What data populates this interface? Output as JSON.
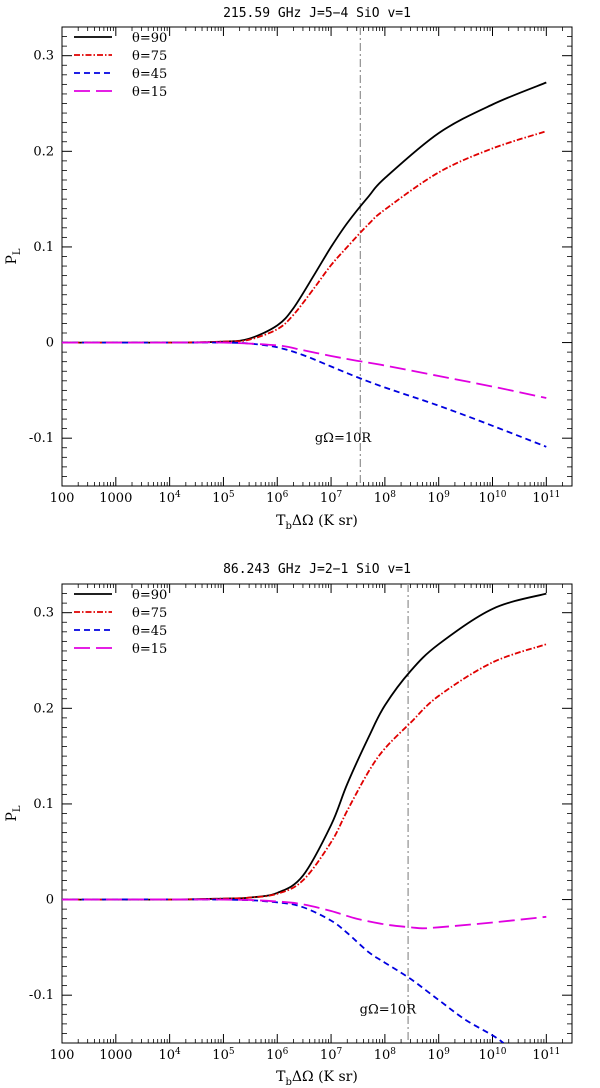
{
  "chart_data": [
    {
      "type": "line",
      "title": "215.59 GHz J=5−4 SiO v=1",
      "xlabel": "T_bΔΩ (K sr)",
      "ylabel": "P_L",
      "xscale": "log",
      "xlim": [
        100,
        300000000000.0
      ],
      "ylim": [
        -0.15,
        0.33
      ],
      "x_ticks": [
        {
          "v": 100,
          "base": "100",
          "exp": ""
        },
        {
          "v": 1000,
          "base": "1000",
          "exp": ""
        },
        {
          "v": 10000.0,
          "base": "10",
          "exp": "4"
        },
        {
          "v": 100000.0,
          "base": "10",
          "exp": "5"
        },
        {
          "v": 1000000.0,
          "base": "10",
          "exp": "6"
        },
        {
          "v": 10000000.0,
          "base": "10",
          "exp": "7"
        },
        {
          "v": 100000000.0,
          "base": "10",
          "exp": "8"
        },
        {
          "v": 1000000000.0,
          "base": "10",
          "exp": "9"
        },
        {
          "v": 10000000000.0,
          "base": "10",
          "exp": "10"
        },
        {
          "v": 100000000000.0,
          "base": "10",
          "exp": "11"
        }
      ],
      "y_ticks": [
        {
          "v": -0.1,
          "label": "-0.1"
        },
        {
          "v": 0,
          "label": "0"
        },
        {
          "v": 0.1,
          "label": "0.1"
        },
        {
          "v": 0.2,
          "label": "0.2"
        },
        {
          "v": 0.3,
          "label": "0.3"
        }
      ],
      "vline": 35000000.0,
      "annotation": {
        "text": "gΩ=10R",
        "x": 5000000.0,
        "y": -0.1
      },
      "series": [
        {
          "name": "θ=90",
          "color": "#000000",
          "dash": "",
          "x": [
            100,
            10000.0,
            100000.0,
            300000.0,
            1000000.0,
            2000000.0,
            5000000.0,
            10000000.0,
            20000000.0,
            50000000.0,
            100000000.0,
            1000000000.0,
            10000000000.0,
            100000000000.0
          ],
          "values": [
            0,
            0,
            0.001,
            0.004,
            0.018,
            0.036,
            0.072,
            0.1,
            0.125,
            0.153,
            0.172,
            0.219,
            0.249,
            0.272
          ]
        },
        {
          "name": "θ=75",
          "color": "#e00000",
          "dash": "6,2,1.5,2",
          "x": [
            100,
            10000.0,
            100000.0,
            300000.0,
            1000000.0,
            2000000.0,
            5000000.0,
            10000000.0,
            20000000.0,
            50000000.0,
            100000000.0,
            1000000000.0,
            10000000000.0,
            100000000000.0
          ],
          "values": [
            0,
            0,
            0.001,
            0.003,
            0.014,
            0.029,
            0.058,
            0.081,
            0.1,
            0.124,
            0.139,
            0.178,
            0.203,
            0.221
          ]
        },
        {
          "name": "θ=45",
          "color": "#0000e0",
          "dash": "6,4",
          "x": [
            100,
            10000.0,
            100000.0,
            300000.0,
            1000000.0,
            3000000.0,
            10000000.0,
            30000000.0,
            100000000.0,
            1000000000.0,
            10000000000.0,
            100000000000.0
          ],
          "values": [
            0,
            0,
            0,
            -0.001,
            -0.005,
            -0.013,
            -0.025,
            -0.036,
            -0.047,
            -0.066,
            -0.087,
            -0.109
          ]
        },
        {
          "name": "θ=15",
          "color": "#e000e0",
          "dash": "16,6",
          "x": [
            100,
            10000.0,
            100000.0,
            1000000.0,
            3000000.0,
            10000000.0,
            30000000.0,
            100000000.0,
            1000000000.0,
            10000000000.0,
            100000000000.0
          ],
          "values": [
            0,
            0,
            0,
            -0.003,
            -0.008,
            -0.014,
            -0.019,
            -0.024,
            -0.035,
            -0.046,
            -0.058
          ]
        }
      ]
    },
    {
      "type": "line",
      "title": "86.243 GHz J=2−1 SiO v=1",
      "xlabel": "T_bΔΩ (K sr)",
      "ylabel": "P_L",
      "xscale": "log",
      "xlim": [
        100,
        300000000000.0
      ],
      "ylim": [
        -0.15,
        0.33
      ],
      "x_ticks": [
        {
          "v": 100,
          "base": "100",
          "exp": ""
        },
        {
          "v": 1000,
          "base": "1000",
          "exp": ""
        },
        {
          "v": 10000.0,
          "base": "10",
          "exp": "4"
        },
        {
          "v": 100000.0,
          "base": "10",
          "exp": "5"
        },
        {
          "v": 1000000.0,
          "base": "10",
          "exp": "6"
        },
        {
          "v": 10000000.0,
          "base": "10",
          "exp": "7"
        },
        {
          "v": 100000000.0,
          "base": "10",
          "exp": "8"
        },
        {
          "v": 1000000000.0,
          "base": "10",
          "exp": "9"
        },
        {
          "v": 10000000000.0,
          "base": "10",
          "exp": "10"
        },
        {
          "v": 100000000000.0,
          "base": "10",
          "exp": "11"
        }
      ],
      "y_ticks": [
        {
          "v": -0.1,
          "label": "-0.1"
        },
        {
          "v": 0,
          "label": "0"
        },
        {
          "v": 0.1,
          "label": "0.1"
        },
        {
          "v": 0.2,
          "label": "0.2"
        },
        {
          "v": 0.3,
          "label": "0.3"
        }
      ],
      "vline": 270000000.0,
      "annotation": {
        "text": "gΩ=10R",
        "x": 34000000.0,
        "y": -0.115
      },
      "series": [
        {
          "name": "θ=90",
          "color": "#000000",
          "dash": "",
          "x": [
            100,
            10000.0,
            100000.0,
            300000.0,
            1000000.0,
            3000000.0,
            10000000.0,
            20000000.0,
            50000000.0,
            100000000.0,
            300000000.0,
            1000000000.0,
            10000000000.0,
            100000000000.0
          ],
          "values": [
            0,
            0,
            0.001,
            0.002,
            0.007,
            0.025,
            0.078,
            0.121,
            0.17,
            0.203,
            0.239,
            0.267,
            0.304,
            0.32
          ]
        },
        {
          "name": "θ=75",
          "color": "#e00000",
          "dash": "6,2,1.5,2",
          "x": [
            100,
            10000.0,
            100000.0,
            300000.0,
            1000000.0,
            3000000.0,
            10000000.0,
            20000000.0,
            50000000.0,
            100000000.0,
            300000000.0,
            1000000000.0,
            10000000000.0,
            100000000000.0
          ],
          "values": [
            0,
            0,
            0.001,
            0.002,
            0.006,
            0.02,
            0.06,
            0.093,
            0.134,
            0.158,
            0.185,
            0.213,
            0.248,
            0.267
          ]
        },
        {
          "name": "θ=45",
          "color": "#0000e0",
          "dash": "6,4",
          "x": [
            100,
            100000.0,
            1000000.0,
            3000000.0,
            10000000.0,
            20000000.0,
            50000000.0,
            100000000.0,
            300000000.0,
            1000000000.0,
            3000000000.0,
            10000000000.0,
            16000000000.0
          ],
          "values": [
            0,
            0,
            -0.003,
            -0.008,
            -0.022,
            -0.035,
            -0.055,
            -0.066,
            -0.083,
            -0.105,
            -0.125,
            -0.142,
            -0.15
          ]
        },
        {
          "name": "θ=15",
          "color": "#e000e0",
          "dash": "16,6",
          "x": [
            100,
            100000.0,
            1000000.0,
            3000000.0,
            10000000.0,
            30000000.0,
            100000000.0,
            300000000.0,
            500000000.0,
            1000000000.0,
            10000000000.0,
            100000000000.0
          ],
          "values": [
            0,
            0,
            -0.002,
            -0.005,
            -0.012,
            -0.02,
            -0.026,
            -0.029,
            -0.03,
            -0.029,
            -0.024,
            -0.018
          ]
        }
      ]
    }
  ]
}
